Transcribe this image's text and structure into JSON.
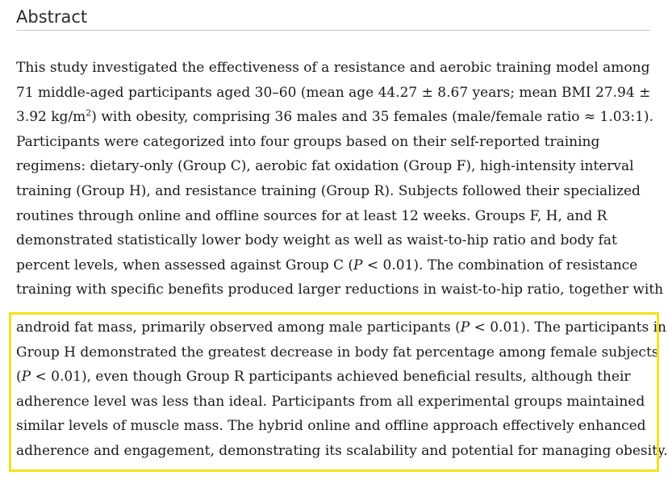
{
  "abstract": {
    "heading": "Abstract",
    "lines": [
      "This study investigated the effectiveness of a resistance and aerobic training model among",
      "71 middle-aged participants aged 30–60 (mean age 44.27 ± 8.67 years; mean BMI 27.94 ±",
      "3.92 kg/m",
      "2",
      ") with obesity, comprising 36 males and 35 females (male/female ratio ≈ 1.03:1).",
      "Participants were categorized into four groups based on their self-reported training",
      "regimens: dietary-only (Group C), aerobic fat oxidation (Group F), high-intensity interval",
      "training (Group H), and resistance training (Group R). Subjects followed their specialized",
      "routines through online and offline sources for at least 12 weeks. Groups F, H, and R",
      "demonstrated statistically lower body weight as well as waist-to-hip ratio and body fat",
      "percent levels, when assessed against Group C (",
      "P",
      " < 0.01). The combination of resistance",
      "training with specific benefits produced larger reductions in waist-to-hip ratio, together with"
    ],
    "highlighted_lines": [
      "android fat mass, primarily observed among male participants (",
      "P",
      " < 0.01). The participants in",
      "Group H demonstrated the greatest decrease in body fat percentage among female subjects",
      "(",
      "P",
      " < 0.01), even though Group R participants achieved beneficial results, although their",
      "adherence level was less than ideal. Participants from all experimental groups maintained",
      "similar levels of muscle mass. The hybrid online and offline approach effectively enhanced",
      "adherence and engagement, demonstrating its scalability and potential for managing obesity."
    ],
    "highlight_color": "#f4e21a",
    "rule_color": "#c9c9c9"
  }
}
